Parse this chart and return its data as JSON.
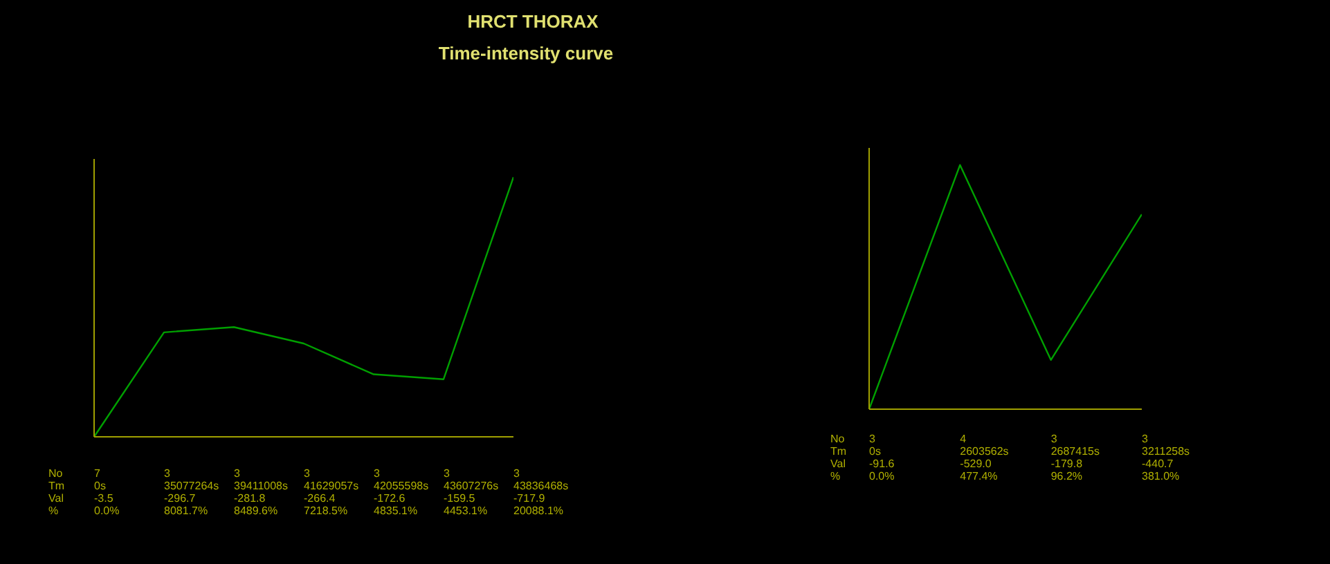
{
  "chart_data": [
    {
      "type": "line",
      "title": "HRCT THORAX",
      "subtitle": "Time-intensity curve",
      "categories": [
        null,
        null,
        null,
        null,
        null,
        null,
        null
      ],
      "values": [
        0.0,
        8081.7,
        8489.6,
        7218.5,
        4835.1,
        4453.1,
        20088.1
      ],
      "value_labels": [
        "0.0%",
        "8081.7%",
        "8489.6%",
        "7218.5%",
        "4835.1%",
        "4453.1%",
        "20088.1%"
      ],
      "color": "#00a000",
      "marker": "none",
      "line_style": "solid",
      "annotations": [
        "No",
        "7",
        "3",
        "3",
        "3",
        "3",
        "3",
        "3",
        "Tm",
        "0s",
        "35077264s",
        "39411008s",
        "41629057s",
        "42055598s",
        "43607276s",
        "43836468s",
        "Val",
        "-3.5",
        "-296.7",
        "-281.8",
        "-266.4",
        "-172.6",
        "-159.5",
        "-717.9",
        "%"
      ]
    },
    {
      "type": "line",
      "categories": [
        null,
        null,
        null,
        null
      ],
      "values": [
        0.0,
        477.4,
        96.2,
        381.0
      ],
      "value_labels": [
        "0.0%",
        "477.4%",
        "96.2%",
        "381.0%"
      ],
      "color": "#00a000",
      "marker": "none",
      "line_style": "solid",
      "annotations": [
        "No",
        "3",
        "4",
        "3",
        "3",
        "Tm",
        "0s",
        "2603562s",
        "2687415s",
        "3211258s",
        "Val",
        "-91.6",
        "-529.0",
        "-179.8",
        "-440.7",
        "%"
      ]
    }
  ]
}
